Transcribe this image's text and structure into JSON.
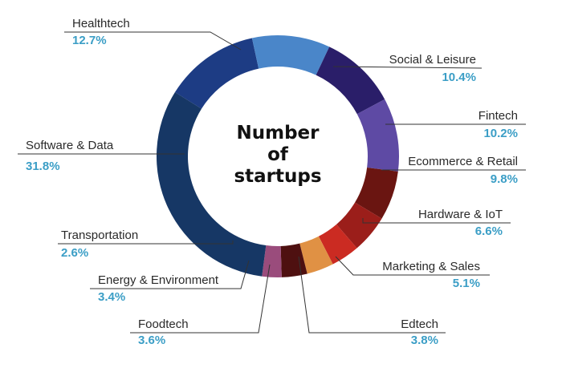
{
  "chart_data": {
    "type": "pie",
    "title": "Number of startups",
    "title_lines": [
      "Number",
      "of",
      "startups"
    ],
    "style": "donut",
    "legend": "none",
    "percent_color": "#3b9ec6",
    "slices": [
      {
        "label": "Healthtech",
        "value": 12.7,
        "display": "12.7%",
        "color": "#1d3c84"
      },
      {
        "label": "Social & Leisure",
        "value": 10.4,
        "display": "10.4%",
        "color": "#4a86c9"
      },
      {
        "label": "Fintech",
        "value": 10.2,
        "display": "10.2%",
        "color": "#2a1e69"
      },
      {
        "label": "Ecommerce & Retail",
        "value": 9.8,
        "display": "9.8%",
        "color": "#5e4aa4"
      },
      {
        "label": "Hardware & IoT",
        "value": 6.6,
        "display": "6.6%",
        "color": "#6a1511"
      },
      {
        "label": "Marketing & Sales",
        "value": 5.1,
        "display": "5.1%",
        "color": "#9b1e1a"
      },
      {
        "label": "Edtech",
        "value": 3.8,
        "display": "3.8%",
        "color": "#cb2b22"
      },
      {
        "label": "Foodtech",
        "value": 3.6,
        "display": "3.6%",
        "color": "#e09144"
      },
      {
        "label": "Energy & Environment",
        "value": 3.4,
        "display": "3.4%",
        "color": "#4e1010"
      },
      {
        "label": "Transportation",
        "value": 2.6,
        "display": "2.6%",
        "color": "#9a4c7c"
      },
      {
        "label": "Software & Data",
        "value": 31.8,
        "display": "31.8%",
        "color": "#163765"
      }
    ]
  }
}
